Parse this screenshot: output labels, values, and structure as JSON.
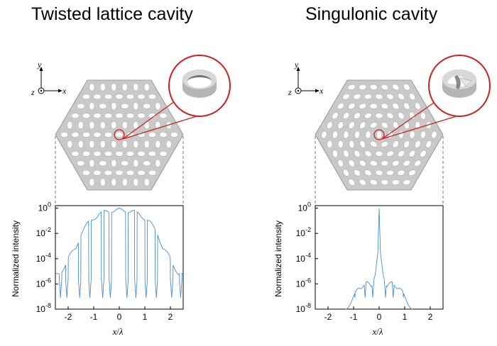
{
  "left_panel": {
    "title": "Twisted lattice cavity",
    "pattern": "twisted",
    "chart_data": {
      "type": "line",
      "title": "",
      "xlabel_var": "x",
      "xlabel_den": "λ",
      "ylabel": "Normalized intensity",
      "xlim": [
        -2.5,
        2.5
      ],
      "ylim_log10": [
        -8,
        0.2
      ],
      "x_ticks": [
        -2,
        -1,
        0,
        1,
        2
      ],
      "y_ticks": [
        {
          "base": "10",
          "exp": "0",
          "value": 0
        },
        {
          "base": "10",
          "exp": "-2",
          "value": -2
        },
        {
          "base": "10",
          "exp": "-4",
          "value": -4
        },
        {
          "base": "10",
          "exp": "-6",
          "value": -6
        },
        {
          "base": "10",
          "exp": "-8",
          "value": -8
        }
      ],
      "series": [
        {
          "name": "intensity",
          "color": "#4a8ccf",
          "profile": "twisted",
          "envelope_log10": [
            [
              -2.5,
              -5.2
            ],
            [
              -2.3,
              -5.0
            ],
            [
              -2.0,
              -3.8
            ],
            [
              -1.7,
              -3.0
            ],
            [
              -1.5,
              -1.8
            ],
            [
              -1.2,
              -1.0
            ],
            [
              -1.0,
              -0.6
            ],
            [
              -0.8,
              -0.3
            ],
            [
              -0.5,
              -0.1
            ],
            [
              -0.3,
              0.0
            ],
            [
              0.0,
              0.0
            ],
            [
              0.3,
              0.0
            ],
            [
              0.5,
              -0.1
            ],
            [
              0.8,
              -0.3
            ],
            [
              1.0,
              -0.6
            ],
            [
              1.2,
              -1.0
            ],
            [
              1.5,
              -1.8
            ],
            [
              1.7,
              -3.0
            ],
            [
              2.0,
              -3.8
            ],
            [
              2.3,
              -5.0
            ],
            [
              2.5,
              -5.2
            ]
          ],
          "dips_x": [
            -2.3,
            -2.05,
            -1.55,
            -1.15,
            -0.65,
            -0.35,
            0.3,
            0.65,
            1.05,
            1.45,
            2.05,
            2.4
          ]
        }
      ]
    },
    "axes": {
      "x": "x",
      "y": "y",
      "z": "z"
    }
  },
  "right_panel": {
    "title": "Singulonic cavity",
    "pattern": "singulonic",
    "chart_data": {
      "type": "line",
      "title": "",
      "xlabel_var": "x",
      "xlabel_den": "λ",
      "ylabel": "Normalized intensity",
      "xlim": [
        -2.5,
        2.5
      ],
      "ylim_log10": [
        -8,
        0.2
      ],
      "x_ticks": [
        -2,
        -1,
        0,
        1,
        2
      ],
      "y_ticks": [
        {
          "base": "10",
          "exp": "0",
          "value": 0
        },
        {
          "base": "10",
          "exp": "-2",
          "value": -2
        },
        {
          "base": "10",
          "exp": "-4",
          "value": -4
        },
        {
          "base": "10",
          "exp": "-6",
          "value": -6
        },
        {
          "base": "10",
          "exp": "-8",
          "value": -8
        }
      ],
      "series": [
        {
          "name": "intensity",
          "color": "#4a8ccf",
          "profile": "singulonic",
          "envelope_log10": [
            [
              -1.3,
              -8.0
            ],
            [
              -1.1,
              -7.2
            ],
            [
              -0.8,
              -6.2
            ],
            [
              -0.5,
              -5.8
            ],
            [
              -0.3,
              -6.0
            ],
            [
              -0.15,
              -5.0
            ],
            [
              -0.05,
              -3.5
            ],
            [
              0.0,
              0.0
            ],
            [
              0.05,
              -3.5
            ],
            [
              0.15,
              -5.0
            ],
            [
              0.3,
              -6.0
            ],
            [
              0.5,
              -5.8
            ],
            [
              0.8,
              -6.2
            ],
            [
              1.1,
              -7.2
            ],
            [
              1.3,
              -8.0
            ]
          ],
          "dips_x": [
            -1.2,
            -0.95,
            -0.55,
            -0.25,
            0.25,
            0.55,
            0.95,
            1.2
          ]
        }
      ]
    },
    "axes": {
      "x": "x",
      "y": "y",
      "z": "z"
    }
  },
  "colors": {
    "accent": "#cc1f1f",
    "curve": "#4a8ccf",
    "hex_fill": "#c9c9c9",
    "hole": "#ffffff"
  }
}
